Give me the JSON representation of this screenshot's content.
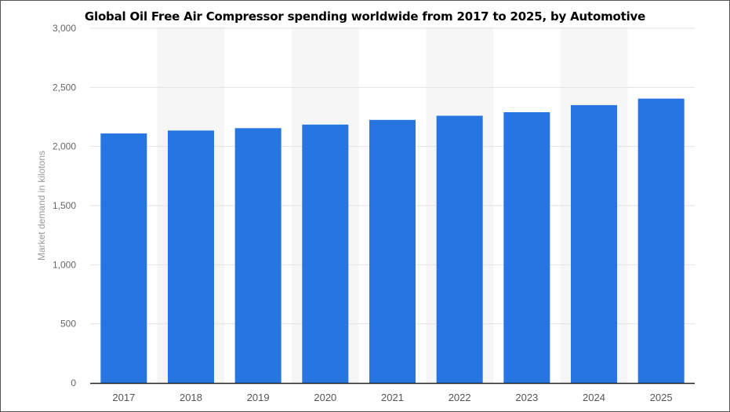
{
  "chart_data": {
    "type": "bar",
    "title": "Global Oil Free Air Compressor spending worldwide from 2017 to 2025, by Automotive",
    "xlabel": "",
    "ylabel": "Market demand in kilotons",
    "categories": [
      "2017",
      "2018",
      "2019",
      "2020",
      "2021",
      "2022",
      "2023",
      "2024",
      "2025"
    ],
    "values": [
      2110,
      2135,
      2155,
      2185,
      2225,
      2260,
      2290,
      2350,
      2405
    ],
    "ylim": [
      0,
      3000
    ],
    "yticks": [
      0,
      500,
      1000,
      1500,
      2000,
      2500,
      3000
    ],
    "ytick_labels": [
      "0",
      "500",
      "1,000",
      "1,500",
      "2,000",
      "2,500",
      "3,000"
    ],
    "grid": true,
    "colors": {
      "bar": "#2775e0",
      "band": "#f6f6f6",
      "grid": "#e2e2e2",
      "axis": "#222222"
    }
  }
}
